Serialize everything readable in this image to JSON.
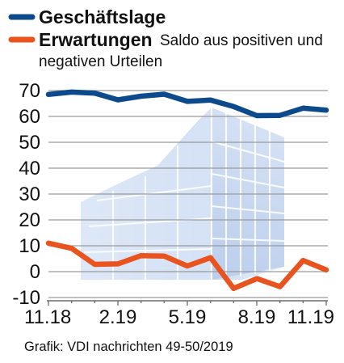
{
  "chart_data": {
    "type": "line",
    "x": [
      "11.18",
      "12.18",
      "1.19",
      "2.19",
      "3.19",
      "4.19",
      "5.19",
      "6.19",
      "7.19",
      "8.19",
      "9.19",
      "10.19",
      "11.19"
    ],
    "x_tick_labels": [
      "11.18",
      "2.19",
      "5.19",
      "8.19",
      "11.19"
    ],
    "y_tick_labels": [
      "70",
      "60",
      "50",
      "40",
      "30",
      "20",
      "10",
      "0",
      "-10"
    ],
    "ylim": [
      -10,
      70
    ],
    "series": [
      {
        "name": "Geschäftslage",
        "color": "#0d4a8c",
        "values": [
          68.5,
          69.4,
          69.0,
          66.4,
          67.8,
          68.6,
          65.8,
          66.3,
          63.8,
          60.3,
          60.4,
          63.2,
          62.4
        ]
      },
      {
        "name": "Erwartungen",
        "color": "#e8531e",
        "values": [
          11.0,
          9.0,
          2.8,
          3.0,
          6.2,
          6.0,
          2.2,
          5.4,
          -6.5,
          -2.7,
          -5.8,
          4.3,
          0.7
        ]
      }
    ],
    "legend": [
      {
        "label": "Geschäftslage",
        "note": ""
      },
      {
        "label": "Erwartungen",
        "note": "Saldo aus positiven und",
        "note2": "negativen Urteilen"
      }
    ],
    "grid": true,
    "grid_color": "#9a9a9a",
    "background_picture": "office-building-photo",
    "source": "Grafik: VDI nachrichten 49-50/2019"
  }
}
